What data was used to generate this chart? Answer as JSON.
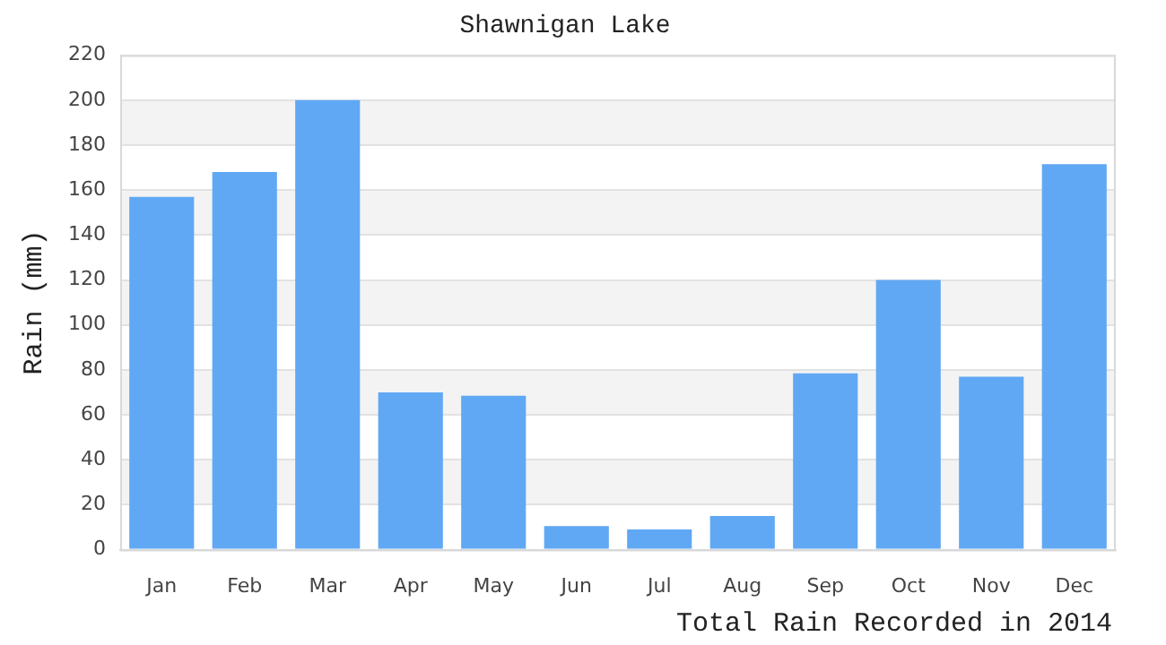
{
  "chart_data": {
    "type": "bar",
    "title": "Shawnigan Lake",
    "ylabel": "Rain (mm)",
    "categories": [
      "Jan",
      "Feb",
      "Mar",
      "Apr",
      "May",
      "Jun",
      "Jul",
      "Aug",
      "Sep",
      "Oct",
      "Nov",
      "Dec"
    ],
    "values": [
      157,
      168,
      200,
      70,
      68.5,
      10.5,
      9,
      15,
      78.5,
      120,
      77,
      171.5
    ],
    "color": "#60a8f4",
    "ylim": [
      0,
      220
    ],
    "yticks": [
      0,
      20,
      40,
      60,
      80,
      100,
      120,
      140,
      160,
      180,
      200,
      220
    ],
    "grid": true,
    "legend": false,
    "annotations": [
      "Total Rain Recorded in 2014"
    ]
  }
}
